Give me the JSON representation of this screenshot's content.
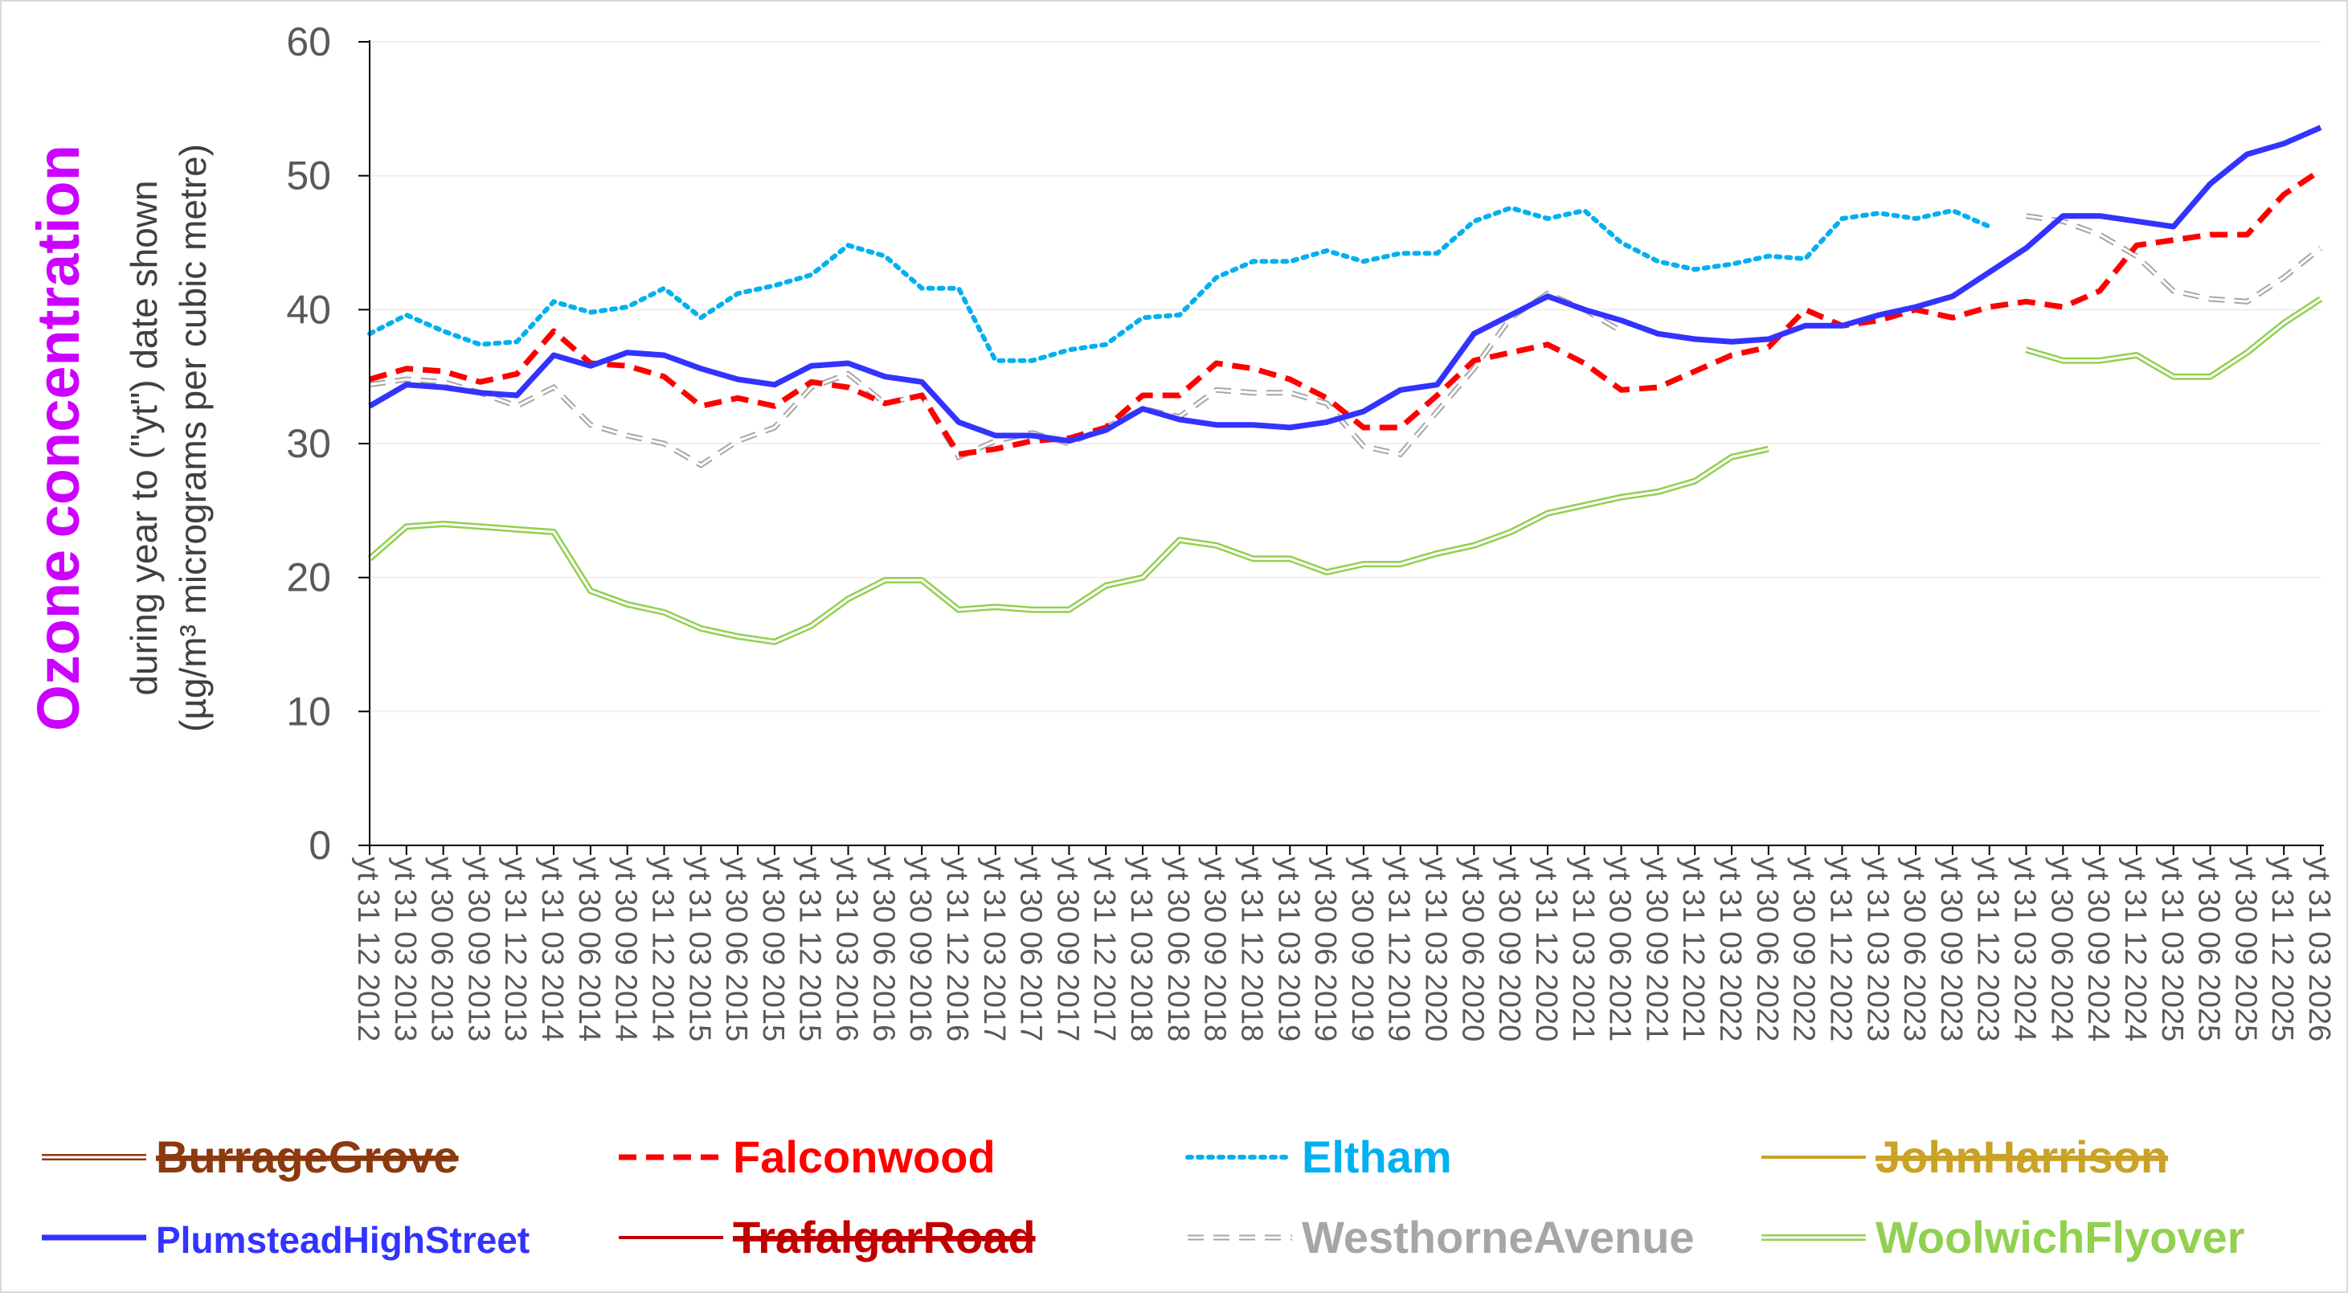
{
  "chart_data": {
    "type": "line",
    "title": "",
    "ylabel": {
      "highlight_1": "Ozone",
      "highlight_2": "concentration",
      "line2": "during year to (\"yt\") date shown",
      "line3": "(µg/m³ micrograms per cubic metre)"
    },
    "ylim": [
      0,
      60
    ],
    "yticks": [
      0,
      10,
      20,
      30,
      40,
      50,
      60
    ],
    "grid": true,
    "legend_position": "bottom",
    "x_tick_labels": [
      "yt 31 12 2012",
      "yt 31 03 2013",
      "yt 30 06 2013",
      "yt 30 09 2013",
      "yt 31 12 2013",
      "yt 31 03 2014",
      "yt 30 06 2014",
      "yt 30 09 2014",
      "yt 31 12 2014",
      "yt 31 03 2015",
      "yt 30 06 2015",
      "yt 30 09 2015",
      "yt 31 12 2015",
      "yt 31 03 2016",
      "yt 30 06 2016",
      "yt 30 09 2016",
      "yt 31 12 2016",
      "yt 31 03 2017",
      "yt 30 06 2017",
      "yt 30 09 2017",
      "yt 31 12 2017",
      "yt 31 03 2018",
      "yt 30 06 2018",
      "yt 30 09 2018",
      "yt 31 12 2018",
      "yt 31 03 2019",
      "yt 30 06 2019",
      "yt 30 09 2019",
      "yt 31 12 2019",
      "yt 31 03 2020",
      "yt 30 06 2020",
      "yt 30 09 2020",
      "yt 31 12 2020",
      "yt 31 03 2021",
      "yt 30 06 2021",
      "yt 30 09 2021",
      "yt 31 12 2021",
      "yt 31 03 2022",
      "yt 30 06 2022",
      "yt 30 09 2022",
      "yt 31 12 2022",
      "yt 31 03 2023",
      "yt 30 06 2023",
      "yt 30 09 2023",
      "yt 31 12 2023",
      "yt 31 03 2024",
      "yt 30 06 2024",
      "yt 30 09 2024",
      "yt 31 12 2024",
      "yt 31 03 2025",
      "yt 30 06 2025",
      "yt 30 09 2025",
      "yt 31 12 2025",
      "yt 31 03 2026"
    ],
    "series": [
      {
        "name": "BurrageGrove",
        "color": "#8B3A0F",
        "style": "double",
        "strikethrough": true,
        "values": []
      },
      {
        "name": "Falconwood",
        "color": "#FF0000",
        "style": "dashed",
        "strikethrough": false,
        "values": [
          [
            0,
            34.8
          ],
          [
            1,
            35.6
          ],
          [
            2,
            35.4
          ],
          [
            3,
            34.6
          ],
          [
            4,
            35.2
          ],
          [
            5,
            38.4
          ],
          [
            6,
            36.0
          ],
          [
            7,
            35.8
          ],
          [
            8,
            35.0
          ],
          [
            9,
            32.8
          ],
          [
            10,
            33.4
          ],
          [
            11,
            32.8
          ],
          [
            12,
            34.6
          ],
          [
            13,
            34.2
          ],
          [
            14,
            33.0
          ],
          [
            15,
            33.6
          ],
          [
            16,
            29.2
          ],
          [
            17,
            29.6
          ],
          [
            18,
            30.2
          ],
          [
            19,
            30.4
          ],
          [
            20,
            31.2
          ],
          [
            21,
            33.6
          ],
          [
            22,
            33.6
          ],
          [
            23,
            36.0
          ],
          [
            24,
            35.6
          ],
          [
            25,
            34.8
          ],
          [
            26,
            33.4
          ],
          [
            27,
            31.2
          ],
          [
            28,
            31.2
          ],
          [
            29,
            33.6
          ],
          [
            30,
            36.2
          ],
          [
            31,
            36.8
          ],
          [
            32,
            37.4
          ],
          [
            33,
            36.0
          ],
          [
            34,
            34.0
          ],
          [
            35,
            34.2
          ],
          [
            36,
            35.4
          ],
          [
            37,
            36.6
          ],
          [
            38,
            37.2
          ],
          [
            39,
            40.0
          ],
          [
            40,
            38.8
          ],
          [
            41,
            39.2
          ],
          [
            42,
            40.0
          ],
          [
            43,
            39.4
          ],
          [
            44,
            40.2
          ],
          [
            45,
            40.6
          ],
          [
            46,
            40.2
          ],
          [
            47,
            41.4
          ],
          [
            48,
            44.8
          ],
          [
            49,
            45.2
          ],
          [
            50,
            45.6
          ],
          [
            51,
            45.6
          ],
          [
            52,
            48.6
          ],
          [
            53,
            50.4
          ]
        ]
      },
      {
        "name": "Eltham",
        "color": "#00B0F0",
        "style": "dotted",
        "strikethrough": false,
        "values": [
          [
            0,
            38.2
          ],
          [
            1,
            39.6
          ],
          [
            2,
            38.4
          ],
          [
            3,
            37.4
          ],
          [
            4,
            37.6
          ],
          [
            5,
            40.6
          ],
          [
            6,
            39.8
          ],
          [
            7,
            40.2
          ],
          [
            8,
            41.6
          ],
          [
            9,
            39.4
          ],
          [
            10,
            41.2
          ],
          [
            11,
            41.8
          ],
          [
            12,
            42.6
          ],
          [
            13,
            44.8
          ],
          [
            14,
            44.0
          ],
          [
            15,
            41.6
          ],
          [
            16,
            41.6
          ],
          [
            17,
            36.2
          ],
          [
            18,
            36.2
          ],
          [
            19,
            37.0
          ],
          [
            20,
            37.4
          ],
          [
            21,
            39.4
          ],
          [
            22,
            39.6
          ],
          [
            23,
            42.4
          ],
          [
            24,
            43.6
          ],
          [
            25,
            43.6
          ],
          [
            26,
            44.4
          ],
          [
            27,
            43.6
          ],
          [
            28,
            44.2
          ],
          [
            29,
            44.2
          ],
          [
            30,
            46.6
          ],
          [
            31,
            47.6
          ],
          [
            32,
            46.8
          ],
          [
            33,
            47.4
          ],
          [
            34,
            45.0
          ],
          [
            35,
            43.6
          ],
          [
            36,
            43.0
          ],
          [
            37,
            43.4
          ],
          [
            38,
            44.0
          ],
          [
            39,
            43.8
          ],
          [
            40,
            46.8
          ],
          [
            41,
            47.2
          ],
          [
            42,
            46.8
          ],
          [
            43,
            47.4
          ],
          [
            44,
            46.2
          ]
        ]
      },
      {
        "name": "JohnHarrison",
        "color": "#C9A227",
        "style": "solid",
        "strikethrough": true,
        "values": []
      },
      {
        "name": "PlumsteadHighStreet",
        "color": "#3333FF",
        "style": "solid-thick",
        "strikethrough": false,
        "values": [
          [
            0,
            32.8
          ],
          [
            1,
            34.4
          ],
          [
            2,
            34.2
          ],
          [
            3,
            33.8
          ],
          [
            4,
            33.6
          ],
          [
            5,
            36.6
          ],
          [
            6,
            35.8
          ],
          [
            7,
            36.8
          ],
          [
            8,
            36.6
          ],
          [
            9,
            35.6
          ],
          [
            10,
            34.8
          ],
          [
            11,
            34.4
          ],
          [
            12,
            35.8
          ],
          [
            13,
            36.0
          ],
          [
            14,
            35.0
          ],
          [
            15,
            34.6
          ],
          [
            16,
            31.6
          ],
          [
            17,
            30.6
          ],
          [
            18,
            30.6
          ],
          [
            19,
            30.2
          ],
          [
            20,
            31.0
          ],
          [
            21,
            32.6
          ],
          [
            22,
            31.8
          ],
          [
            23,
            31.4
          ],
          [
            24,
            31.4
          ],
          [
            25,
            31.2
          ],
          [
            26,
            31.6
          ],
          [
            27,
            32.4
          ],
          [
            28,
            34.0
          ],
          [
            29,
            34.4
          ],
          [
            30,
            38.2
          ],
          [
            31,
            39.6
          ],
          [
            32,
            41.0
          ],
          [
            33,
            40.0
          ],
          [
            34,
            39.2
          ],
          [
            35,
            38.2
          ],
          [
            36,
            37.8
          ],
          [
            37,
            37.6
          ],
          [
            38,
            37.8
          ],
          [
            39,
            38.8
          ],
          [
            40,
            38.8
          ],
          [
            41,
            39.6
          ],
          [
            42,
            40.2
          ],
          [
            43,
            41.0
          ],
          [
            44,
            42.8
          ],
          [
            45,
            44.6
          ],
          [
            46,
            47.0
          ],
          [
            47,
            47.0
          ],
          [
            48,
            46.6
          ],
          [
            49,
            46.2
          ],
          [
            50,
            49.4
          ],
          [
            51,
            51.6
          ],
          [
            52,
            52.4
          ],
          [
            53,
            53.6
          ]
        ]
      },
      {
        "name": "TrafalgarRoad",
        "color": "#C00000",
        "style": "solid",
        "strikethrough": true,
        "values": []
      },
      {
        "name": "WesthorneAvenue",
        "color": "#A6A6A6",
        "style": "dashed-double",
        "strikethrough": false,
        "values": [
          [
            0,
            34.4
          ],
          [
            1,
            34.8
          ],
          [
            2,
            34.6
          ],
          [
            3,
            33.8
          ],
          [
            4,
            32.8
          ],
          [
            5,
            34.2
          ],
          [
            6,
            31.4
          ],
          [
            7,
            30.6
          ],
          [
            8,
            30.0
          ],
          [
            9,
            28.4
          ],
          [
            10,
            30.2
          ],
          [
            11,
            31.2
          ],
          [
            12,
            34.2
          ],
          [
            13,
            35.2
          ],
          [
            14,
            33.0
          ],
          [
            15,
            33.6
          ],
          [
            16,
            29.0
          ],
          [
            17,
            30.2
          ],
          [
            18,
            30.8
          ],
          [
            19,
            30.0
          ],
          [
            20,
            31.2
          ],
          [
            21,
            32.6
          ],
          [
            22,
            32.0
          ],
          [
            23,
            34.0
          ],
          [
            24,
            33.8
          ],
          [
            25,
            33.8
          ],
          [
            26,
            33.0
          ],
          [
            27,
            29.8
          ],
          [
            28,
            29.2
          ],
          [
            29,
            32.4
          ],
          [
            30,
            35.6
          ],
          [
            31,
            39.4
          ],
          [
            32,
            41.2
          ],
          [
            33,
            40.0
          ],
          [
            34,
            38.4
          ],
          [
            35,
            null
          ],
          [
            45,
            47.0
          ],
          [
            46,
            46.6
          ],
          [
            47,
            45.6
          ],
          [
            48,
            44.0
          ],
          [
            49,
            41.4
          ],
          [
            50,
            40.8
          ],
          [
            51,
            40.6
          ],
          [
            52,
            42.4
          ],
          [
            53,
            44.6
          ]
        ]
      },
      {
        "name": "WoolwichFlyover",
        "color": "#92D050",
        "style": "double",
        "strikethrough": false,
        "values": [
          [
            0,
            21.4
          ],
          [
            1,
            23.8
          ],
          [
            2,
            24.0
          ],
          [
            3,
            23.8
          ],
          [
            4,
            23.6
          ],
          [
            5,
            23.4
          ],
          [
            6,
            19.0
          ],
          [
            7,
            18.0
          ],
          [
            8,
            17.4
          ],
          [
            9,
            16.2
          ],
          [
            10,
            15.6
          ],
          [
            11,
            15.2
          ],
          [
            12,
            16.4
          ],
          [
            13,
            18.4
          ],
          [
            14,
            19.8
          ],
          [
            15,
            19.8
          ],
          [
            16,
            17.6
          ],
          [
            17,
            17.8
          ],
          [
            18,
            17.6
          ],
          [
            19,
            17.6
          ],
          [
            20,
            19.4
          ],
          [
            21,
            20.0
          ],
          [
            22,
            22.8
          ],
          [
            23,
            22.4
          ],
          [
            24,
            21.4
          ],
          [
            25,
            21.4
          ],
          [
            26,
            20.4
          ],
          [
            27,
            21.0
          ],
          [
            28,
            21.0
          ],
          [
            29,
            21.8
          ],
          [
            30,
            22.4
          ],
          [
            31,
            23.4
          ],
          [
            32,
            24.8
          ],
          [
            33,
            25.4
          ],
          [
            34,
            26.0
          ],
          [
            35,
            26.4
          ],
          [
            36,
            27.2
          ],
          [
            37,
            29.0
          ],
          [
            38,
            29.6
          ],
          [
            39,
            null
          ],
          [
            45,
            37.0
          ],
          [
            46,
            36.2
          ],
          [
            47,
            36.2
          ],
          [
            48,
            36.6
          ],
          [
            49,
            35.0
          ],
          [
            50,
            35.0
          ],
          [
            51,
            36.8
          ],
          [
            52,
            39.0
          ],
          [
            53,
            40.8
          ]
        ]
      }
    ]
  }
}
